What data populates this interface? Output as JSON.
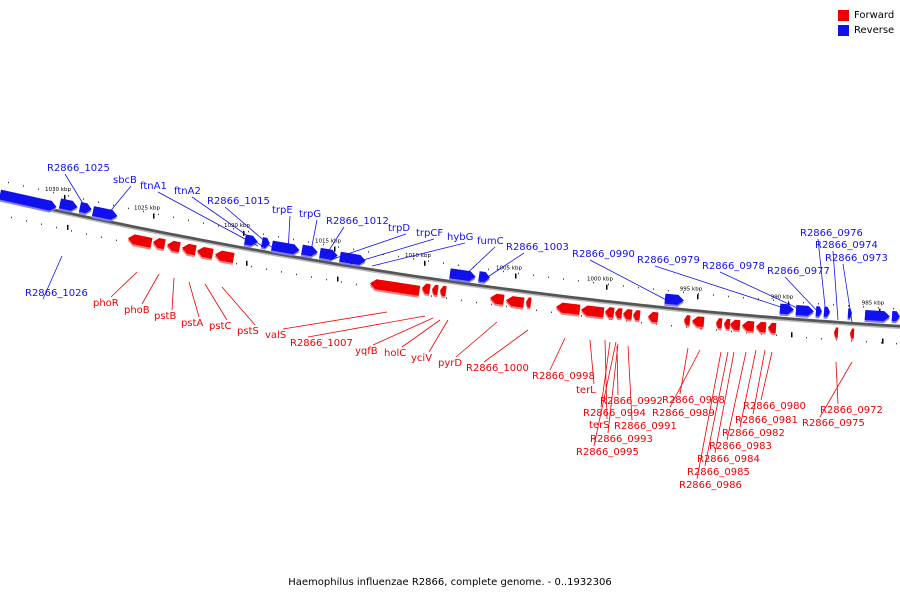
{
  "legend": [
    {
      "label": "Forward",
      "color": "#ee0000"
    },
    {
      "label": "Reverse",
      "color": "#1111ee"
    }
  ],
  "caption": "Haemophilus influenzae R2866, complete genome. - 0..1932306",
  "tick_labels": [
    "1030 kbp",
    "1025 kbp",
    "1020 kbp",
    "1015 kbp",
    "1010 kbp",
    "1005 kbp",
    "1000 kbp",
    "995 kbp",
    "990 kbp",
    "985 kbp"
  ],
  "reverse_labels": [
    "R2866_1025",
    "sbcB",
    "ftnA1",
    "ftnA2",
    "R2866_1015",
    "trpE",
    "trpG",
    "R2866_1012",
    "trpD",
    "trpCF",
    "hybG",
    "fumC",
    "R2866_1003",
    "R2866_0990",
    "R2866_0979",
    "R2866_0978",
    "R2866_0977",
    "R2866_0976",
    "R2866_0974",
    "R2866_0973",
    "R2866_1026"
  ],
  "forward_labels": [
    "phoR",
    "phoB",
    "pstB",
    "pstA",
    "pstC",
    "pstS",
    "valS",
    "R2866_1007",
    "yqfB",
    "holC",
    "yciV",
    "pyrD",
    "R2866_1000",
    "R2866_0998",
    "terL",
    "R2866_0992",
    "R2866_0994",
    "terS",
    "R2866_0991",
    "R2866_0993",
    "R2866_0995",
    "R2866_0988",
    "R2866_0989",
    "R2866_0980",
    "R2866_0981",
    "R2866_0982",
    "R2866_0983",
    "R2866_0984",
    "R2866_0985",
    "R2866_0986",
    "R2866_0972",
    "R2866_0975"
  ],
  "colors": {
    "forward": "#ee0000",
    "reverse": "#1111ee",
    "forward_shade": "#f08080",
    "reverse_shade": "#8080f0",
    "backbone": "#888888"
  }
}
